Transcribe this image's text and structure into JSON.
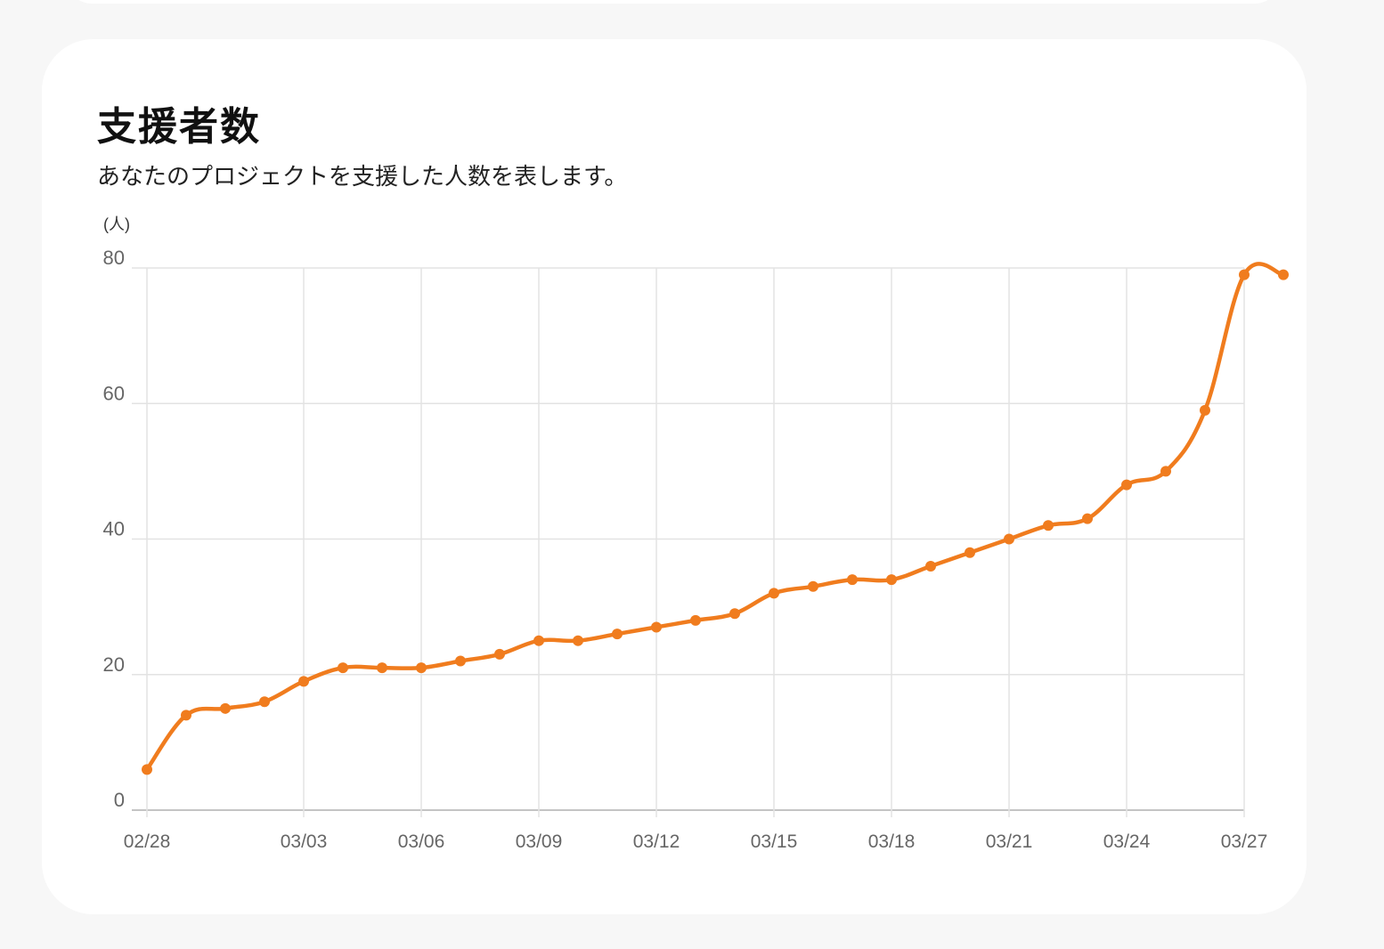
{
  "header": {
    "title": "支援者数",
    "description": "あなたのプロジェクトを支援した人数を表します。"
  },
  "chart_data": {
    "type": "line",
    "title": "",
    "xlabel": "",
    "ylabel": "(人)",
    "ylim": [
      0,
      80
    ],
    "yticks": [
      "0",
      "20",
      "40",
      "60",
      "80"
    ],
    "xticks": [
      "02/28",
      "03/03",
      "03/06",
      "03/09",
      "03/12",
      "03/15",
      "03/18",
      "03/21",
      "03/24",
      "03/27"
    ],
    "grid": true,
    "color": "#f07c1e",
    "x": [
      "02/28",
      "02/29",
      "03/01",
      "03/02",
      "03/03",
      "03/04",
      "03/05",
      "03/06",
      "03/07",
      "03/08",
      "03/09",
      "03/10",
      "03/11",
      "03/12",
      "03/13",
      "03/14",
      "03/15",
      "03/16",
      "03/17",
      "03/18",
      "03/19",
      "03/20",
      "03/21",
      "03/22",
      "03/23",
      "03/24",
      "03/25",
      "03/26",
      "03/27",
      "03/28"
    ],
    "values": [
      6,
      14,
      15,
      16,
      19,
      21,
      21,
      21,
      22,
      23,
      25,
      25,
      26,
      27,
      28,
      29,
      32,
      33,
      34,
      34,
      36,
      38,
      40,
      42,
      43,
      48,
      50,
      59,
      79,
      79
    ]
  }
}
